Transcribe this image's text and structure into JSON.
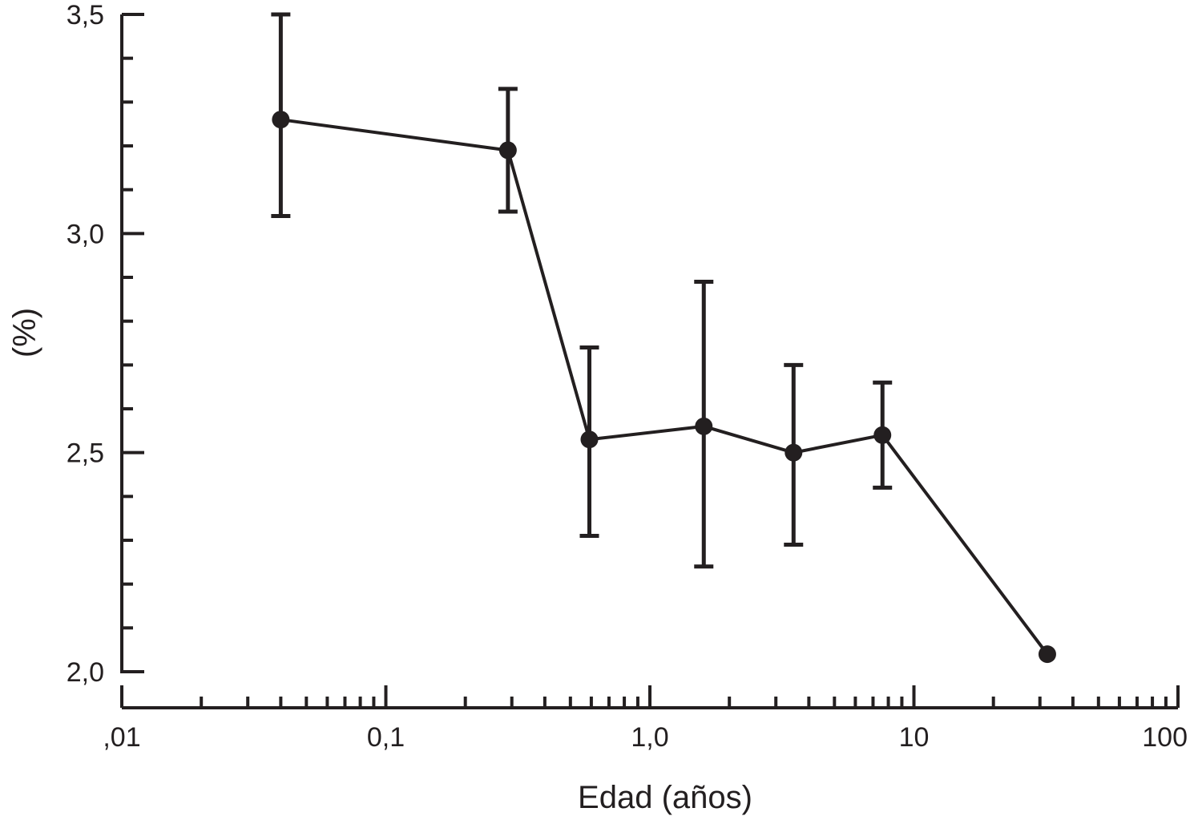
{
  "chart_data": {
    "type": "line",
    "title": "",
    "xlabel": "Edad (años)",
    "ylabel": "(%)",
    "x_scale": "log",
    "xlim": [
      0.01,
      100
    ],
    "ylim": [
      2.0,
      3.5
    ],
    "x_ticks": [
      0.01,
      0.1,
      1,
      10,
      100
    ],
    "x_tick_labels": [
      ",01",
      "0,1",
      "1,0",
      "10",
      "100"
    ],
    "y_ticks": [
      2.0,
      2.5,
      3.0,
      3.5
    ],
    "y_tick_labels": [
      "2,0",
      "2,5",
      "3,0",
      "3,5"
    ],
    "grid": false,
    "legend": "none",
    "color": "#231f20",
    "series": [
      {
        "points": [
          {
            "x": 0.04,
            "y": 3.26,
            "err_low": 3.04,
            "err_high": 3.5
          },
          {
            "x": 0.29,
            "y": 3.19,
            "err_low": 3.05,
            "err_high": 3.33
          },
          {
            "x": 0.59,
            "y": 2.53,
            "err_low": 2.31,
            "err_high": 2.74
          },
          {
            "x": 1.6,
            "y": 2.56,
            "err_low": 2.24,
            "err_high": 2.89
          },
          {
            "x": 3.5,
            "y": 2.5,
            "err_low": 2.29,
            "err_high": 2.7
          },
          {
            "x": 7.6,
            "y": 2.54,
            "err_low": 2.42,
            "err_high": 2.66
          },
          {
            "x": 32,
            "y": 2.04
          }
        ]
      }
    ]
  }
}
